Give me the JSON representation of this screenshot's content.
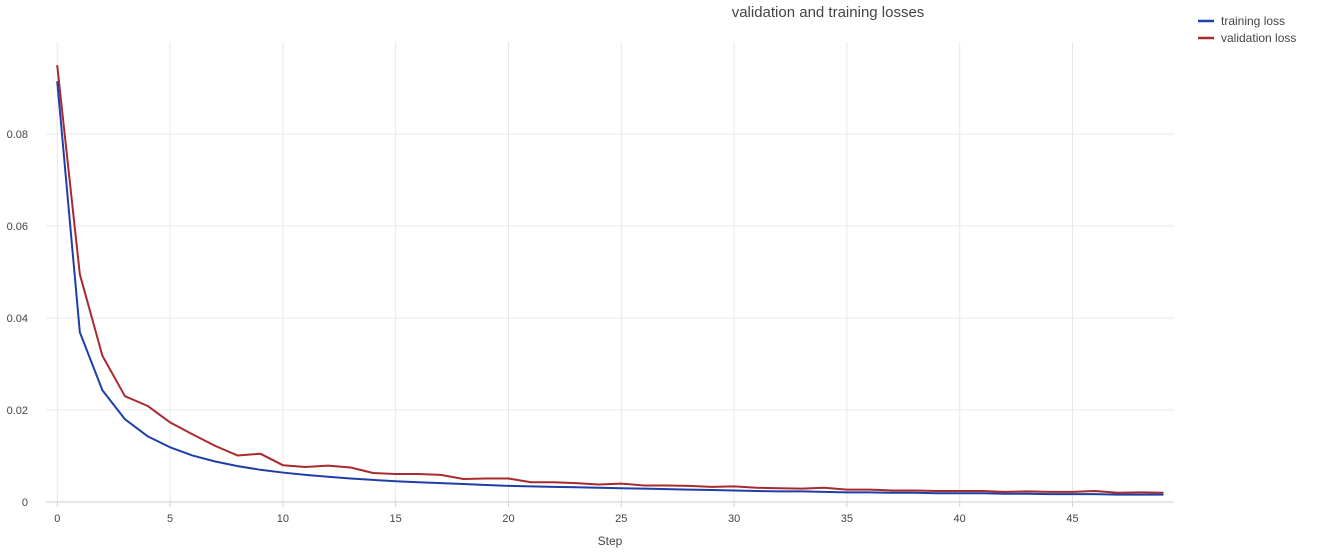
{
  "chart_data": {
    "type": "line",
    "title": "validation and training losses",
    "xlabel": "Step",
    "ylabel": "",
    "xlim": [
      -0.5,
      49.5
    ],
    "ylim": [
      0,
      0.1
    ],
    "xticks": [
      0,
      5,
      10,
      15,
      20,
      25,
      30,
      35,
      40,
      45
    ],
    "yticks": [
      0,
      0.02,
      0.04,
      0.06,
      0.08
    ],
    "ytick_labels": [
      "0",
      "0.02",
      "0.04",
      "0.06",
      "0.08"
    ],
    "grid": true,
    "legend_position": "top-right",
    "x": [
      0,
      1,
      2,
      3,
      4,
      5,
      6,
      7,
      8,
      9,
      10,
      11,
      12,
      13,
      14,
      15,
      16,
      17,
      18,
      19,
      20,
      21,
      22,
      23,
      24,
      25,
      26,
      27,
      28,
      29,
      30,
      31,
      32,
      33,
      34,
      35,
      36,
      37,
      38,
      39,
      40,
      41,
      42,
      43,
      44,
      45,
      46,
      47,
      48,
      49
    ],
    "series": [
      {
        "name": "training loss",
        "color": "#1f3fa8",
        "values": [
          0.0913,
          0.0369,
          0.0243,
          0.018,
          0.0143,
          0.0119,
          0.0101,
          0.0088,
          0.0078,
          0.007,
          0.0064,
          0.0059,
          0.0055,
          0.0051,
          0.0048,
          0.0045,
          0.0043,
          0.0041,
          0.0039,
          0.0037,
          0.0035,
          0.0034,
          0.0033,
          0.0032,
          0.0031,
          0.003,
          0.0029,
          0.0028,
          0.0027,
          0.0026,
          0.0025,
          0.0024,
          0.0023,
          0.0023,
          0.0022,
          0.0021,
          0.0021,
          0.002,
          0.002,
          0.0019,
          0.0019,
          0.0019,
          0.0018,
          0.0018,
          0.0017,
          0.0017,
          0.0017,
          0.0016,
          0.0016,
          0.0016
        ]
      },
      {
        "name": "validation loss",
        "color": "#a82a2e",
        "values": [
          0.0948,
          0.0495,
          0.0318,
          0.023,
          0.0209,
          0.0173,
          0.0147,
          0.0122,
          0.0101,
          0.0105,
          0.008,
          0.0076,
          0.0079,
          0.0075,
          0.0063,
          0.0061,
          0.0061,
          0.0059,
          0.005,
          0.0051,
          0.0051,
          0.0043,
          0.0043,
          0.0041,
          0.0038,
          0.004,
          0.0036,
          0.0036,
          0.0035,
          0.0033,
          0.0034,
          0.0031,
          0.003,
          0.0029,
          0.0031,
          0.0027,
          0.0027,
          0.0025,
          0.0025,
          0.0024,
          0.0024,
          0.0024,
          0.0022,
          0.0023,
          0.0022,
          0.0022,
          0.0024,
          0.002,
          0.0021,
          0.002
        ]
      }
    ]
  }
}
